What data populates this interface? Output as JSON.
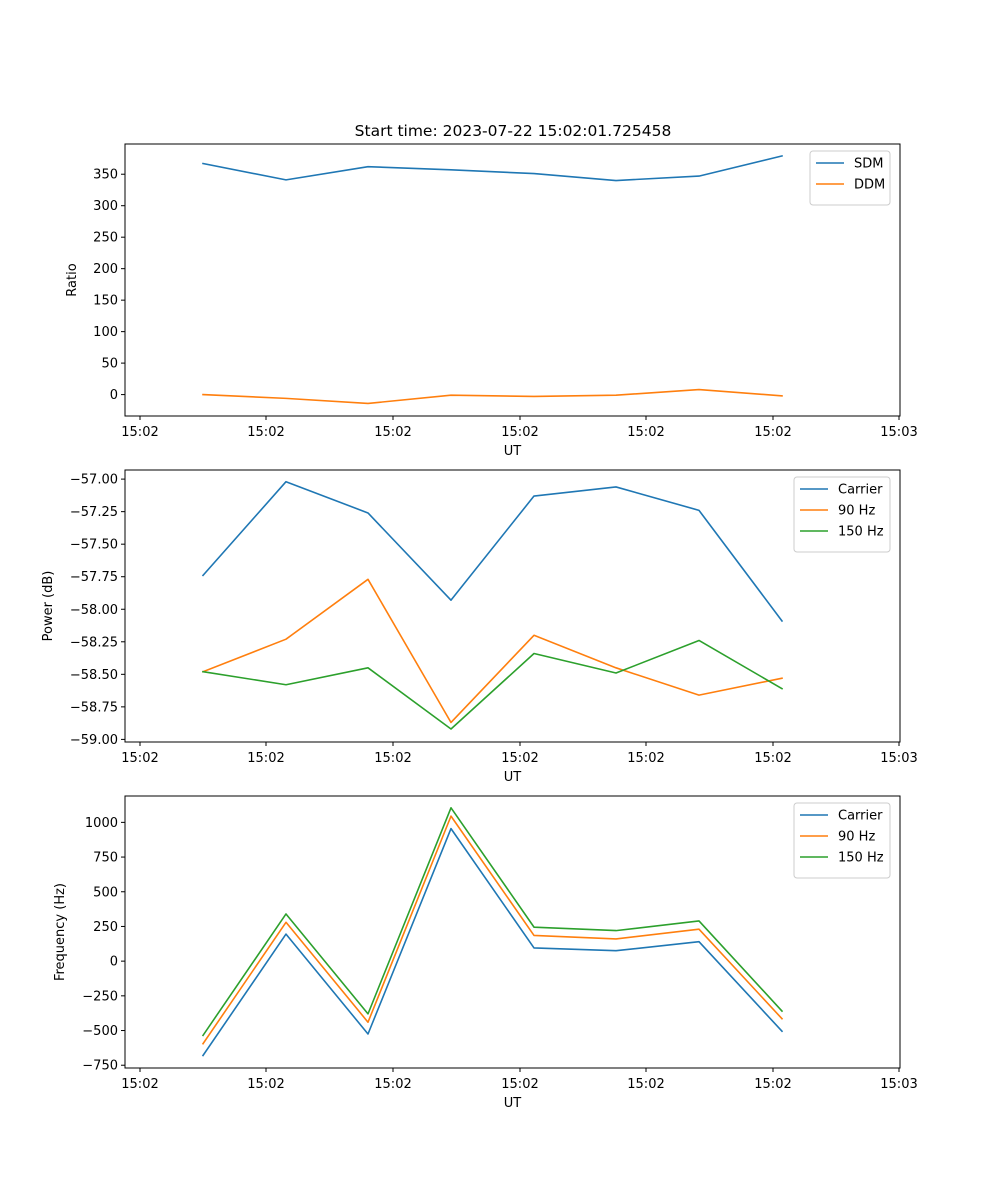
{
  "title": "Start time: 2023-07-22 15:02:01.725458",
  "colors": {
    "blue": "#1f77b4",
    "orange": "#ff7f0e",
    "green": "#2ca02c"
  },
  "chart_data": [
    {
      "type": "line",
      "ylabel": "Ratio",
      "xlabel": "UT",
      "x_tick_labels": [
        "15:02",
        "15:02",
        "15:02",
        "15:02",
        "15:02",
        "15:02",
        "15:03"
      ],
      "y_ticks": [
        0,
        50,
        100,
        150,
        200,
        250,
        300,
        350
      ],
      "y_tick_labels": [
        "0",
        "50",
        "100",
        "150",
        "200",
        "250",
        "300",
        "350"
      ],
      "ylim": [
        -34,
        398
      ],
      "legend_position": "top-right",
      "series": [
        {
          "name": "SDM",
          "color": "blue",
          "values": [
            367,
            341,
            362,
            357,
            351,
            340,
            347,
            379
          ]
        },
        {
          "name": "DDM",
          "color": "orange",
          "values": [
            0,
            -6,
            -14,
            -1,
            -3,
            -1,
            8,
            -2
          ]
        }
      ]
    },
    {
      "type": "line",
      "ylabel": "Power (dB)",
      "xlabel": "UT",
      "x_tick_labels": [
        "15:02",
        "15:02",
        "15:02",
        "15:02",
        "15:02",
        "15:02",
        "15:03"
      ],
      "y_ticks": [
        -57.0,
        -57.25,
        -57.5,
        -57.75,
        -58.0,
        -58.25,
        -58.5,
        -58.75,
        -59.0
      ],
      "y_tick_labels": [
        "−57.00",
        "−57.25",
        "−57.50",
        "−57.75",
        "−58.00",
        "−58.25",
        "−58.50",
        "−58.75",
        "−59.00"
      ],
      "ylim": [
        -59.02,
        -56.93
      ],
      "legend_position": "top-right",
      "series": [
        {
          "name": "Carrier",
          "color": "blue",
          "values": [
            -57.74,
            -57.02,
            -57.26,
            -57.93,
            -57.13,
            -57.06,
            -57.24,
            -58.09
          ]
        },
        {
          "name": "90 Hz",
          "color": "orange",
          "values": [
            -58.48,
            -58.23,
            -57.77,
            -58.87,
            -58.2,
            -58.45,
            -58.66,
            -58.53
          ]
        },
        {
          "name": "150 Hz",
          "color": "green",
          "values": [
            -58.48,
            -58.58,
            -58.45,
            -58.92,
            -58.34,
            -58.49,
            -58.24,
            -58.61
          ]
        }
      ]
    },
    {
      "type": "line",
      "ylabel": "Frequency (Hz)",
      "xlabel": "UT",
      "x_tick_labels": [
        "15:02",
        "15:02",
        "15:02",
        "15:02",
        "15:02",
        "15:02",
        "15:03"
      ],
      "y_ticks": [
        -750,
        -500,
        -250,
        0,
        250,
        500,
        750,
        1000
      ],
      "y_tick_labels": [
        "−750",
        "−500",
        "−250",
        "0",
        "250",
        "500",
        "750",
        "1000"
      ],
      "ylim": [
        -770,
        1190
      ],
      "legend_position": "top-right",
      "series": [
        {
          "name": "Carrier",
          "color": "blue",
          "values": [
            -680,
            195,
            -525,
            955,
            95,
            75,
            140,
            -505
          ]
        },
        {
          "name": "90 Hz",
          "color": "orange",
          "values": [
            -595,
            280,
            -440,
            1045,
            185,
            160,
            230,
            -415
          ]
        },
        {
          "name": "150 Hz",
          "color": "green",
          "values": [
            -535,
            340,
            -380,
            1105,
            245,
            220,
            290,
            -360
          ]
        }
      ]
    }
  ]
}
